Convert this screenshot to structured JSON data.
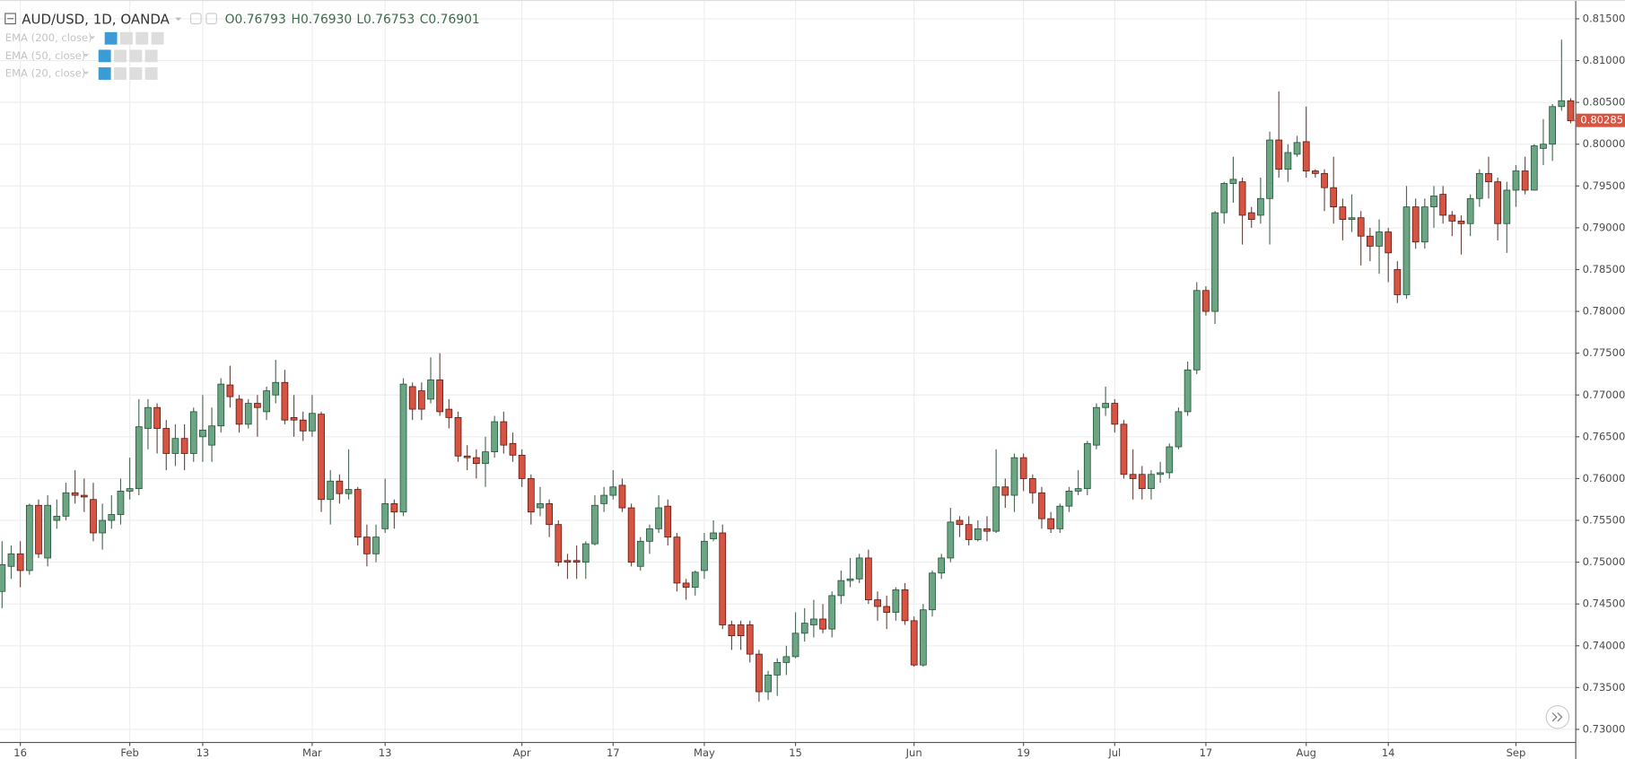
{
  "chart_data": {
    "type": "candlestick",
    "title": "AUD/USD, 1D, OANDA",
    "ohlc_labels": [
      "O0.76793",
      "H0.76930",
      "L0.76753",
      "C0.76901"
    ],
    "indicators": [
      "EMA (200, close)",
      "EMA (50, close)",
      "EMA (20, close)"
    ],
    "up_color": "#6ba583",
    "down_color": "#d75442",
    "grid": true,
    "last_price": 0.80285,
    "ylim": [
      0.7285,
      0.817
    ],
    "yticks": [
      {
        "value": 0.73,
        "label": "0.73000"
      },
      {
        "value": 0.735,
        "label": "0.73500"
      },
      {
        "value": 0.74,
        "label": "0.74000"
      },
      {
        "value": 0.745,
        "label": "0.74500"
      },
      {
        "value": 0.75,
        "label": "0.75000"
      },
      {
        "value": 0.755,
        "label": "0.75500"
      },
      {
        "value": 0.76,
        "label": "0.76000"
      },
      {
        "value": 0.765,
        "label": "0.76500"
      },
      {
        "value": 0.77,
        "label": "0.77000"
      },
      {
        "value": 0.775,
        "label": "0.77500"
      },
      {
        "value": 0.78,
        "label": "0.78000"
      },
      {
        "value": 0.785,
        "label": "0.78500"
      },
      {
        "value": 0.79,
        "label": "0.79000"
      },
      {
        "value": 0.795,
        "label": "0.79500"
      },
      {
        "value": 0.8,
        "label": "0.80000"
      },
      {
        "value": 0.805,
        "label": "0.80500"
      },
      {
        "value": 0.81,
        "label": "0.81000"
      },
      {
        "value": 0.815,
        "label": "0.81500"
      }
    ],
    "categories": [
      null,
      null,
      "16",
      null,
      null,
      null,
      null,
      null,
      null,
      null,
      null,
      null,
      null,
      null,
      "Feb",
      null,
      null,
      null,
      null,
      null,
      null,
      null,
      "13",
      null,
      null,
      null,
      null,
      null,
      null,
      null,
      null,
      null,
      null,
      null,
      "Mar",
      null,
      null,
      null,
      null,
      null,
      null,
      null,
      "13",
      null,
      null,
      null,
      null,
      null,
      null,
      null,
      null,
      null,
      null,
      null,
      null,
      null,
      null,
      "Apr",
      null,
      null,
      null,
      null,
      null,
      null,
      null,
      null,
      null,
      "17",
      null,
      null,
      null,
      null,
      null,
      null,
      null,
      null,
      null,
      "May",
      null,
      null,
      null,
      null,
      null,
      null,
      null,
      null,
      null,
      "15",
      null,
      null,
      null,
      null,
      null,
      null,
      null,
      null,
      null,
      null,
      null,
      null,
      "Jun",
      null,
      null,
      null,
      null,
      null,
      null,
      null,
      null,
      null,
      null,
      null,
      "19",
      null,
      null,
      null,
      null,
      null,
      null,
      null,
      null,
      null,
      "Jul",
      null,
      null,
      null,
      null,
      null,
      null,
      null,
      null,
      null,
      "17",
      null,
      null,
      null,
      null,
      null,
      null,
      null,
      null,
      null,
      null,
      "Aug",
      null,
      null,
      null,
      null,
      null,
      null,
      null,
      null,
      "14",
      null,
      null,
      null,
      null,
      null,
      null,
      null,
      null,
      null,
      null,
      null,
      null,
      null,
      "Sep",
      null,
      null,
      null,
      null,
      null,
      null
    ],
    "open": [
      0.7465,
      0.7495,
      0.751,
      0.749,
      0.7568,
      0.7505,
      0.755,
      0.7555,
      0.7583,
      0.758,
      0.7575,
      0.7535,
      0.755,
      0.7557,
      0.7585,
      0.7588,
      0.766,
      0.7685,
      0.766,
      0.763,
      0.7648,
      0.763,
      0.765,
      0.764,
      0.7663,
      0.7712,
      0.7695,
      0.7665,
      0.769,
      0.768,
      0.77,
      0.7715,
      0.7673,
      0.767,
      0.7657,
      0.7677,
      0.7575,
      0.7597,
      0.7582,
      0.7587,
      0.753,
      0.751,
      0.754,
      0.757,
      0.756,
      0.771,
      0.7705,
      0.7695,
      0.7718,
      0.7683,
      0.7673,
      0.7627,
      0.7625,
      0.7618,
      0.7632,
      0.7668,
      0.7642,
      0.7628,
      0.76,
      0.7565,
      0.757,
      0.7545,
      0.7502,
      0.7502,
      0.75,
      0.7522,
      0.757,
      0.758,
      0.7592,
      0.7565,
      0.7495,
      0.7525,
      0.754,
      0.7567,
      0.753,
      0.7475,
      0.747,
      0.749,
      0.7528,
      0.7535,
      0.7425,
      0.7425,
      0.7425,
      0.739,
      0.7345,
      0.7365,
      0.738,
      0.7387,
      0.7415,
      0.7425,
      0.7432,
      0.742,
      0.746,
      0.7478,
      0.748,
      0.7505,
      0.7455,
      0.7447,
      0.744,
      0.7467,
      0.743,
      0.7377,
      0.7443,
      0.7487,
      0.7505,
      0.755,
      0.7545,
      0.7527,
      0.754,
      0.7537,
      0.759,
      0.758,
      0.7625,
      0.76,
      0.7583,
      0.7552,
      0.754,
      0.7567,
      0.7585,
      0.7588,
      0.764,
      0.7685,
      0.769,
      0.7665,
      0.7605,
      0.7605,
      0.7588,
      0.7605,
      0.7607,
      0.7638,
      0.768,
      0.773,
      0.7825,
      0.78,
      0.7918,
      0.7953,
      0.7955,
      0.7918,
      0.7915,
      0.7935,
      0.8005,
      0.797,
      0.7988,
      0.8003,
      0.7968,
      0.7965,
      0.7948,
      0.7925,
      0.791,
      0.7912,
      0.789,
      0.7878,
      0.7895,
      0.785,
      0.782,
      0.7925,
      0.7883,
      0.7925,
      0.794,
      0.7915,
      0.7908,
      0.7905,
      0.7935,
      0.7965,
      0.7955,
      0.7905,
      0.7945,
      0.7968,
      0.7945,
      0.7995,
      0.8,
      0.8045,
      0.8052
    ],
    "high": [
      0.7525,
      0.752,
      0.7525,
      0.757,
      0.7575,
      0.758,
      0.7575,
      0.7595,
      0.761,
      0.76,
      0.7595,
      0.757,
      0.758,
      0.76,
      0.7625,
      0.7695,
      0.7695,
      0.769,
      0.767,
      0.7665,
      0.7665,
      0.7685,
      0.77,
      0.7685,
      0.772,
      0.7735,
      0.77,
      0.7695,
      0.77,
      0.771,
      0.7742,
      0.773,
      0.77,
      0.768,
      0.77,
      0.768,
      0.761,
      0.7605,
      0.7635,
      0.759,
      0.7545,
      0.7545,
      0.76,
      0.7575,
      0.772,
      0.7715,
      0.7715,
      0.7745,
      0.775,
      0.7695,
      0.768,
      0.764,
      0.7635,
      0.765,
      0.7675,
      0.768,
      0.7655,
      0.7635,
      0.7605,
      0.759,
      0.7575,
      0.755,
      0.751,
      0.752,
      0.7525,
      0.758,
      0.759,
      0.761,
      0.76,
      0.757,
      0.753,
      0.7545,
      0.758,
      0.7575,
      0.7535,
      0.748,
      0.749,
      0.7535,
      0.755,
      0.7545,
      0.743,
      0.743,
      0.743,
      0.7395,
      0.737,
      0.7385,
      0.74,
      0.744,
      0.7445,
      0.7455,
      0.745,
      0.7465,
      0.749,
      0.7505,
      0.751,
      0.7515,
      0.7465,
      0.746,
      0.747,
      0.7475,
      0.7435,
      0.745,
      0.749,
      0.751,
      0.7565,
      0.7555,
      0.7555,
      0.755,
      0.7555,
      0.7635,
      0.76,
      0.763,
      0.763,
      0.7605,
      0.759,
      0.756,
      0.757,
      0.759,
      0.761,
      0.7645,
      0.769,
      0.771,
      0.7695,
      0.767,
      0.7635,
      0.7615,
      0.761,
      0.762,
      0.7642,
      0.7685,
      0.774,
      0.7835,
      0.783,
      0.792,
      0.7955,
      0.7985,
      0.796,
      0.7925,
      0.796,
      0.8015,
      0.8063,
      0.8,
      0.801,
      0.8045,
      0.797,
      0.797,
      0.7985,
      0.7935,
      0.794,
      0.792,
      0.79,
      0.791,
      0.79,
      0.786,
      0.795,
      0.7935,
      0.7935,
      0.795,
      0.795,
      0.792,
      0.7915,
      0.794,
      0.797,
      0.7985,
      0.796,
      0.7955,
      0.7975,
      0.7985,
      0.8,
      0.803,
      0.8048,
      0.8125,
      0.8055
    ],
    "low": [
      0.7445,
      0.748,
      0.747,
      0.7485,
      0.7505,
      0.7495,
      0.754,
      0.755,
      0.757,
      0.756,
      0.7525,
      0.7515,
      0.754,
      0.7545,
      0.7575,
      0.758,
      0.7635,
      0.763,
      0.761,
      0.7615,
      0.761,
      0.762,
      0.762,
      0.762,
      0.7655,
      0.7685,
      0.7655,
      0.766,
      0.765,
      0.767,
      0.769,
      0.7665,
      0.765,
      0.7645,
      0.765,
      0.756,
      0.7545,
      0.757,
      0.7575,
      0.752,
      0.7495,
      0.75,
      0.7535,
      0.754,
      0.7555,
      0.767,
      0.767,
      0.769,
      0.7675,
      0.766,
      0.762,
      0.761,
      0.76,
      0.759,
      0.7625,
      0.763,
      0.762,
      0.759,
      0.7545,
      0.7555,
      0.753,
      0.7495,
      0.748,
      0.748,
      0.748,
      0.752,
      0.756,
      0.7575,
      0.756,
      0.7495,
      0.749,
      0.751,
      0.7535,
      0.752,
      0.7465,
      0.7455,
      0.746,
      0.748,
      0.7525,
      0.742,
      0.7395,
      0.7395,
      0.738,
      0.7333,
      0.7335,
      0.734,
      0.7365,
      0.7385,
      0.7405,
      0.741,
      0.7415,
      0.741,
      0.745,
      0.747,
      0.7475,
      0.745,
      0.743,
      0.742,
      0.743,
      0.7425,
      0.7375,
      0.7375,
      0.7435,
      0.748,
      0.75,
      0.753,
      0.752,
      0.7525,
      0.7525,
      0.7535,
      0.7565,
      0.756,
      0.7585,
      0.757,
      0.754,
      0.7535,
      0.7535,
      0.756,
      0.758,
      0.758,
      0.7635,
      0.7675,
      0.7655,
      0.76,
      0.7575,
      0.7575,
      0.7575,
      0.7595,
      0.76,
      0.7635,
      0.7675,
      0.7725,
      0.7795,
      0.7785,
      0.7905,
      0.793,
      0.788,
      0.79,
      0.7905,
      0.788,
      0.796,
      0.7955,
      0.7985,
      0.796,
      0.796,
      0.792,
      0.7905,
      0.7885,
      0.7895,
      0.7855,
      0.786,
      0.7845,
      0.7835,
      0.781,
      0.7815,
      0.7875,
      0.7875,
      0.79,
      0.7905,
      0.789,
      0.7868,
      0.789,
      0.7925,
      0.7935,
      0.7885,
      0.787,
      0.7925,
      0.794,
      0.7945,
      0.7975,
      0.798,
      0.804,
      0.8025
    ],
    "close": [
      0.7497,
      0.751,
      0.749,
      0.7568,
      0.751,
      0.7568,
      0.7555,
      0.7583,
      0.758,
      0.7578,
      0.7535,
      0.755,
      0.7557,
      0.7585,
      0.7588,
      0.7662,
      0.7685,
      0.766,
      0.763,
      0.7648,
      0.763,
      0.768,
      0.7658,
      0.7663,
      0.7713,
      0.7698,
      0.7665,
      0.769,
      0.7685,
      0.7705,
      0.7715,
      0.767,
      0.767,
      0.7657,
      0.7678,
      0.7575,
      0.7597,
      0.7582,
      0.7587,
      0.753,
      0.751,
      0.753,
      0.757,
      0.756,
      0.7713,
      0.7683,
      0.7683,
      0.7718,
      0.768,
      0.7673,
      0.7627,
      0.7625,
      0.7618,
      0.7632,
      0.7668,
      0.764,
      0.7628,
      0.76,
      0.756,
      0.757,
      0.7545,
      0.75,
      0.75,
      0.75,
      0.7522,
      0.7568,
      0.758,
      0.759,
      0.7565,
      0.75,
      0.7525,
      0.754,
      0.7565,
      0.753,
      0.7475,
      0.747,
      0.7488,
      0.7525,
      0.7535,
      0.7425,
      0.7412,
      0.7412,
      0.739,
      0.7345,
      0.7365,
      0.738,
      0.7387,
      0.7415,
      0.7427,
      0.7432,
      0.742,
      0.746,
      0.7478,
      0.748,
      0.7505,
      0.7455,
      0.7447,
      0.744,
      0.7467,
      0.743,
      0.7377,
      0.7443,
      0.7487,
      0.7505,
      0.7548,
      0.7545,
      0.7527,
      0.754,
      0.7537,
      0.759,
      0.758,
      0.7625,
      0.76,
      0.7583,
      0.7552,
      0.754,
      0.7567,
      0.7585,
      0.7588,
      0.7642,
      0.7685,
      0.769,
      0.7665,
      0.7605,
      0.76,
      0.7588,
      0.7605,
      0.7607,
      0.7638,
      0.768,
      0.773,
      0.7825,
      0.78,
      0.7918,
      0.7953,
      0.7958,
      0.7915,
      0.791,
      0.7935,
      0.8005,
      0.797,
      0.799,
      0.8002,
      0.7968,
      0.7965,
      0.7948,
      0.7925,
      0.791,
      0.7912,
      0.789,
      0.7878,
      0.7895,
      0.787,
      0.782,
      0.7925,
      0.7883,
      0.7925,
      0.7938,
      0.7915,
      0.7908,
      0.7905,
      0.7935,
      0.7965,
      0.7955,
      0.7905,
      0.7945,
      0.7968,
      0.7945,
      0.7998,
      0.8,
      0.8045,
      0.8052,
      0.8028
    ]
  }
}
